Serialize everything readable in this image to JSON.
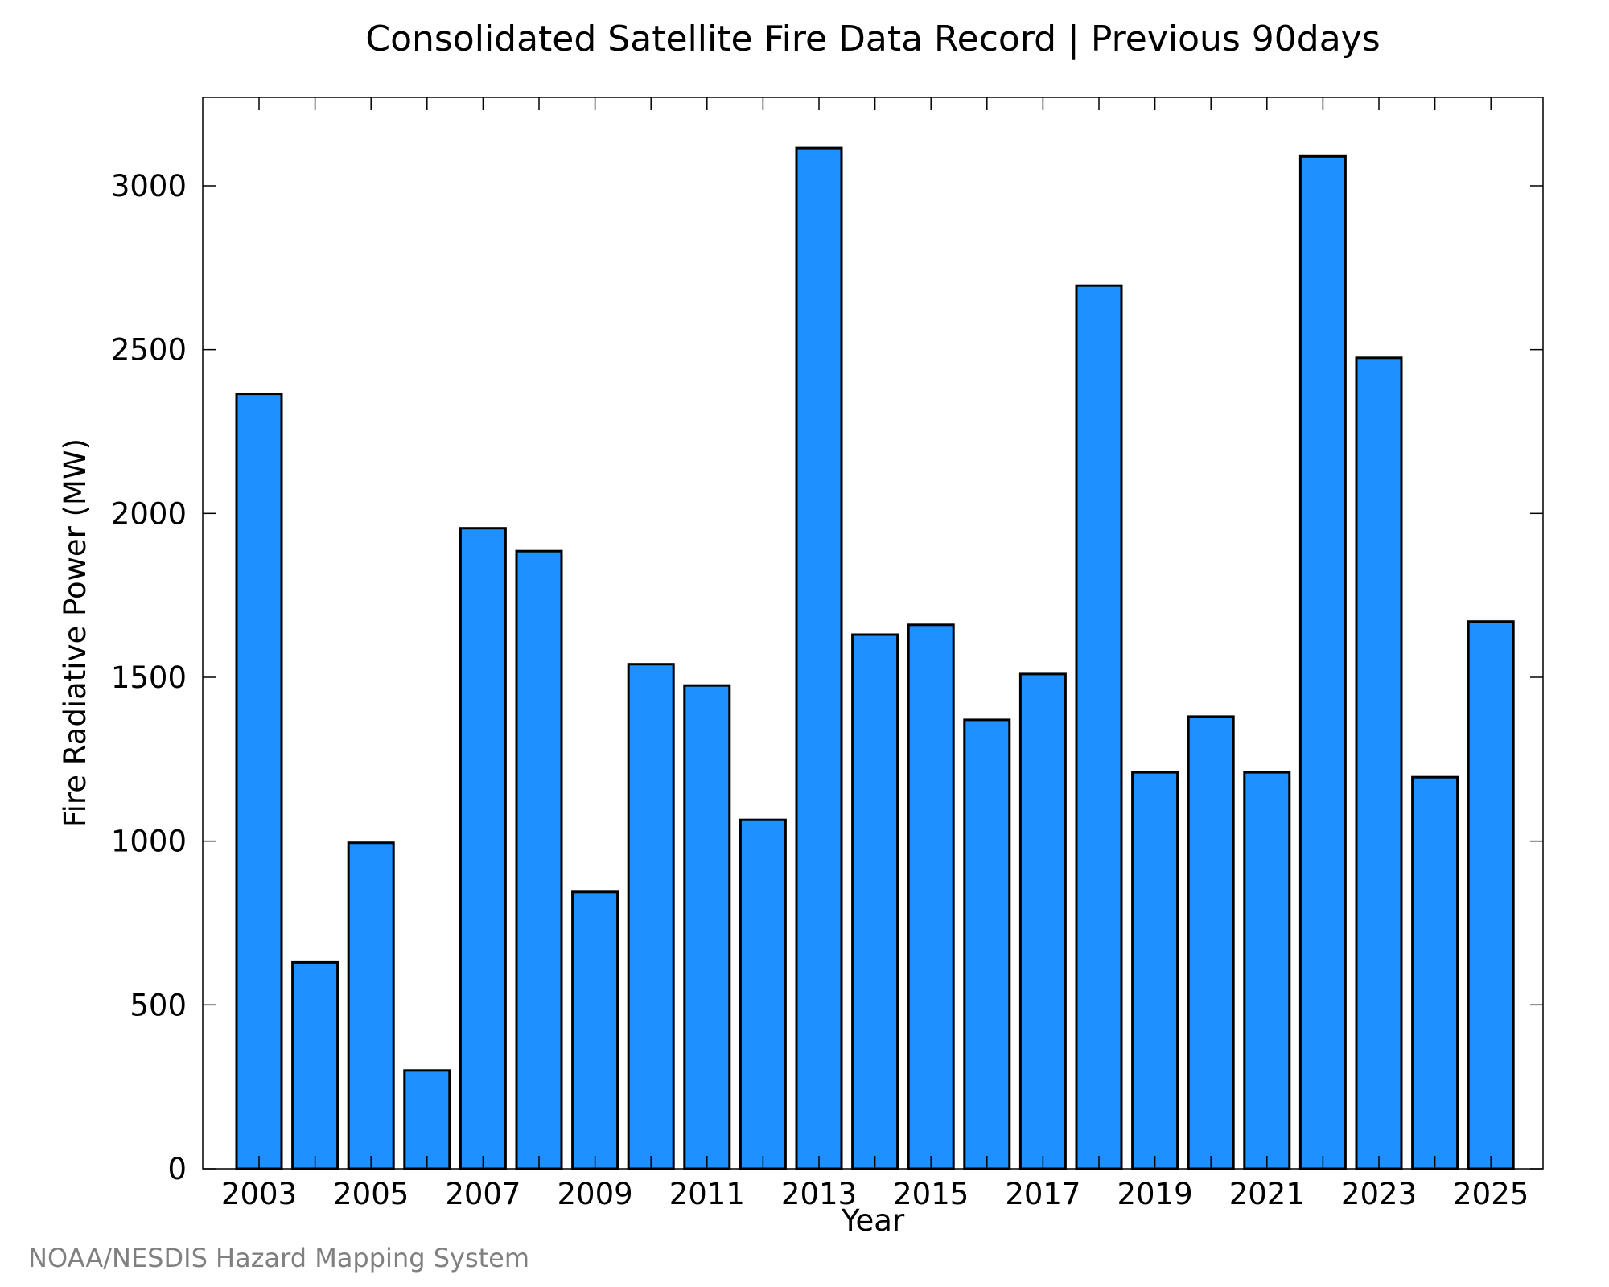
{
  "chart_data": {
    "type": "bar",
    "title": "Consolidated Satellite Fire Data Record | Previous 90days",
    "xlabel": "Year",
    "ylabel": "Fire Radiative Power (MW)",
    "categories": [
      "2003",
      "2004",
      "2005",
      "2006",
      "2007",
      "2008",
      "2009",
      "2010",
      "2011",
      "2012",
      "2013",
      "2014",
      "2015",
      "2016",
      "2017",
      "2018",
      "2019",
      "2020",
      "2021",
      "2022",
      "2023",
      "2024",
      "2025"
    ],
    "values": [
      2365,
      630,
      995,
      300,
      1955,
      1885,
      845,
      1540,
      1475,
      1065,
      3115,
      1630,
      1660,
      1370,
      1510,
      2695,
      1210,
      1380,
      1210,
      3090,
      2475,
      1195,
      1670
    ],
    "x_tick_labels": [
      "2003",
      "2005",
      "2007",
      "2009",
      "2011",
      "2013",
      "2015",
      "2017",
      "2019",
      "2021",
      "2023",
      "2025"
    ],
    "y_ticks": [
      0,
      500,
      1000,
      1500,
      2000,
      2500,
      3000
    ],
    "ylim": [
      0,
      3270
    ],
    "grid": false,
    "legend": "none",
    "bar_color": "#1e90ff",
    "bar_edge_color": "#000000"
  },
  "credit": "NOAA/NESDIS Hazard Mapping System"
}
